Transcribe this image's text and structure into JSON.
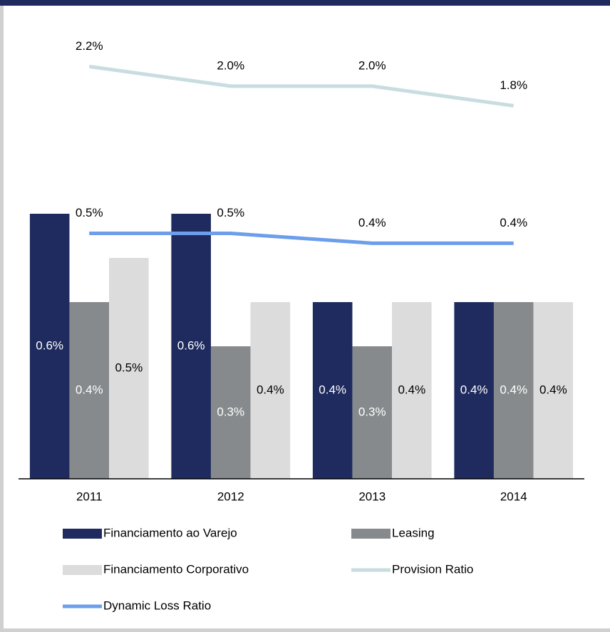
{
  "chart_data": {
    "type": "bar_line",
    "categories": [
      "2011",
      "2012",
      "2013",
      "2014"
    ],
    "ylim": [
      0,
      1
    ],
    "y2lim": [
      -2,
      2.5
    ],
    "series": [
      {
        "name": "Financiamento ao Varejo",
        "kind": "bar",
        "color": "#1f2b5e",
        "label_color": "#ffffff",
        "values": [
          0.6,
          0.6,
          0.4,
          0.4
        ],
        "value_labels": [
          "0.6%",
          "0.6%",
          "0.4%",
          "0.4%"
        ]
      },
      {
        "name": "Leasing",
        "kind": "bar",
        "color": "#878a8c",
        "label_color": "#ffffff",
        "values": [
          0.4,
          0.3,
          0.3,
          0.4
        ],
        "value_labels": [
          "0.4%",
          "0.3%",
          "0.3%",
          "0.4%"
        ]
      },
      {
        "name": "Financiamento Corporativo",
        "kind": "bar",
        "color": "#dcdcdc",
        "label_color": "#000000",
        "values": [
          0.5,
          0.4,
          0.4,
          0.4
        ],
        "value_labels": [
          "0.5%",
          "0.4%",
          "0.4%",
          "0.4%"
        ]
      },
      {
        "name": "Provision Ratio",
        "kind": "line",
        "axis": "y2",
        "color": "#c9dde0",
        "values": [
          2.2,
          2.0,
          2.0,
          1.8
        ],
        "value_labels": [
          "2.2%",
          "2.0%",
          "2.0%",
          "1.8%"
        ]
      },
      {
        "name": "Dynamic Loss Ratio",
        "kind": "line",
        "axis": "y2",
        "color": "#6d9eeb",
        "values": [
          0.5,
          0.5,
          0.4,
          0.4
        ],
        "value_labels": [
          "0.5%",
          "0.5%",
          "0.4%",
          "0.4%"
        ]
      }
    ]
  }
}
